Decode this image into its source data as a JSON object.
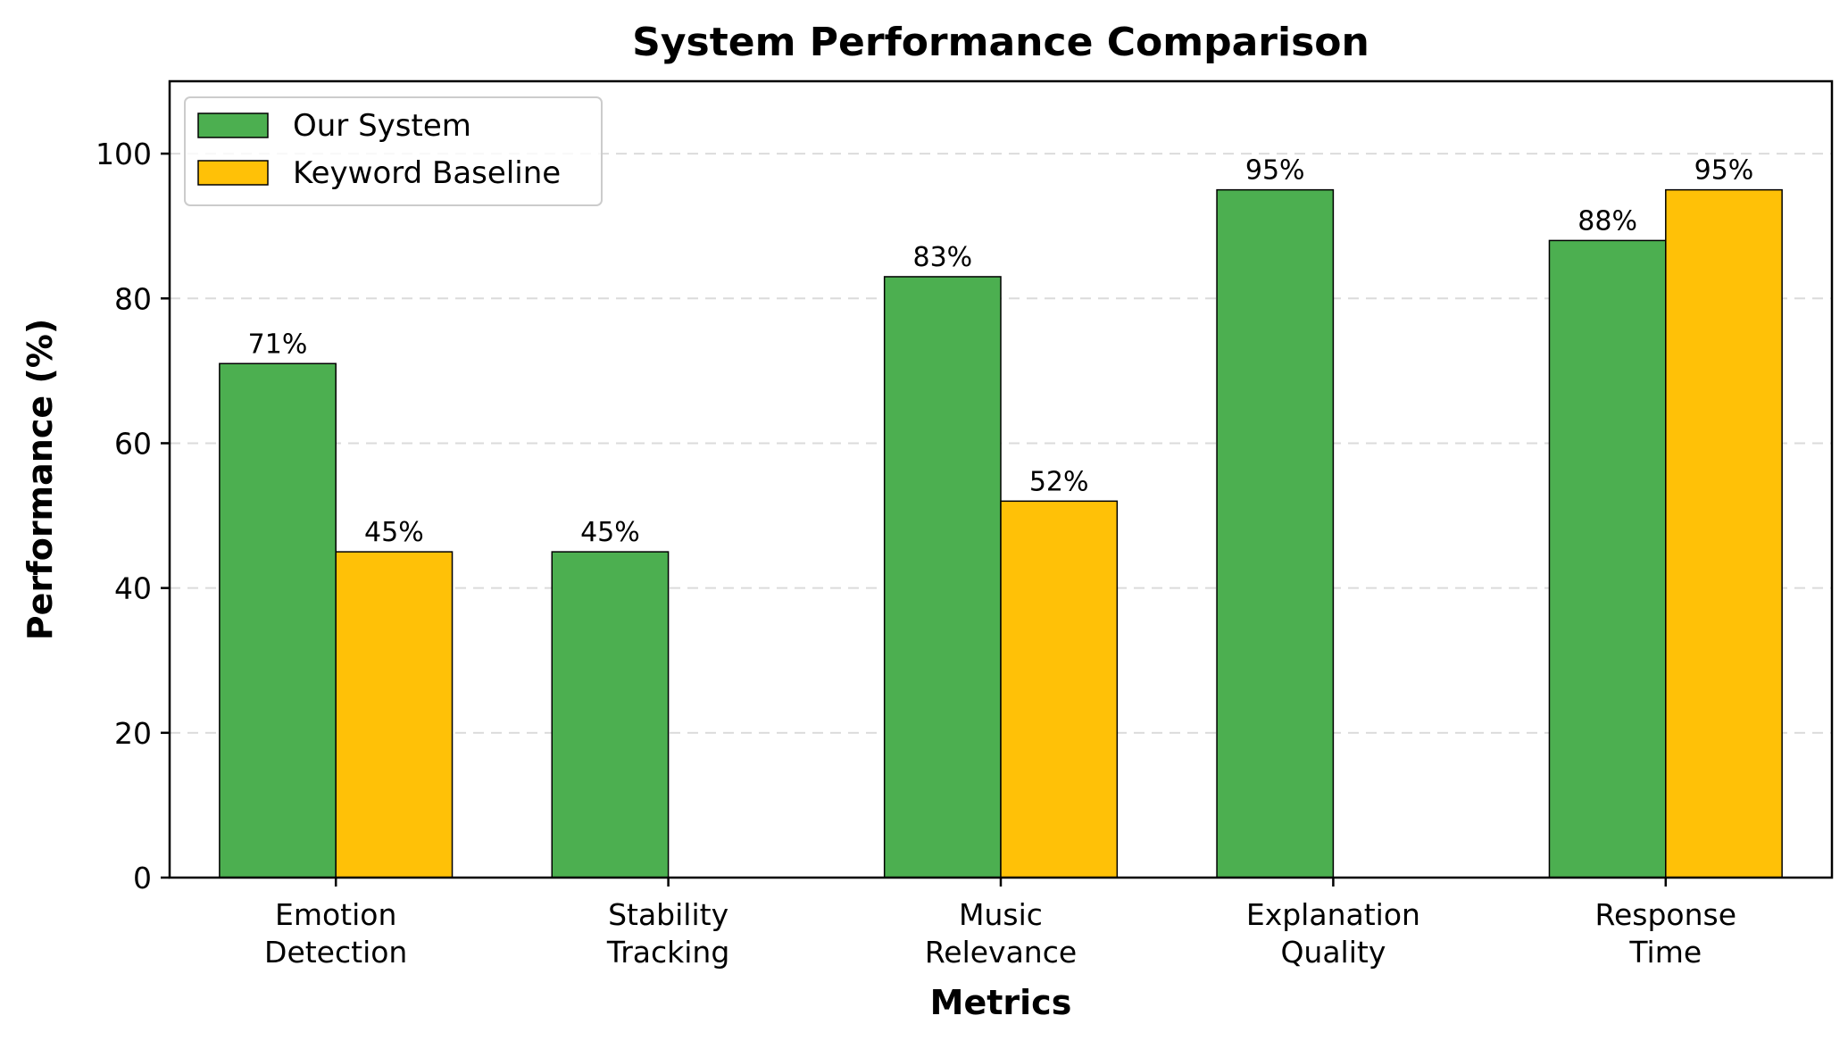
{
  "chart_data": {
    "type": "bar",
    "title": "System Performance Comparison",
    "xlabel": "Metrics",
    "ylabel": "Performance (%)",
    "categories": [
      [
        "Emotion",
        "Detection"
      ],
      [
        "Stability",
        "Tracking"
      ],
      [
        "Music",
        "Relevance"
      ],
      [
        "Explanation",
        "Quality"
      ],
      [
        "Response",
        "Time"
      ]
    ],
    "series": [
      {
        "name": "Our System",
        "color": "#4caf50",
        "values": [
          71,
          45,
          83,
          95,
          88
        ],
        "data_labels": [
          "71%",
          "45%",
          "83%",
          "95%",
          "88%"
        ]
      },
      {
        "name": "Keyword Baseline",
        "color": "#ffc107",
        "values": [
          45,
          null,
          52,
          null,
          95
        ],
        "data_labels": [
          "45%",
          "",
          "52%",
          "",
          "95%"
        ]
      }
    ],
    "ylim": [
      0,
      110
    ],
    "yticks": [
      0,
      20,
      40,
      60,
      80,
      100
    ],
    "grid": "y dashed",
    "legend_position": "top-left"
  }
}
